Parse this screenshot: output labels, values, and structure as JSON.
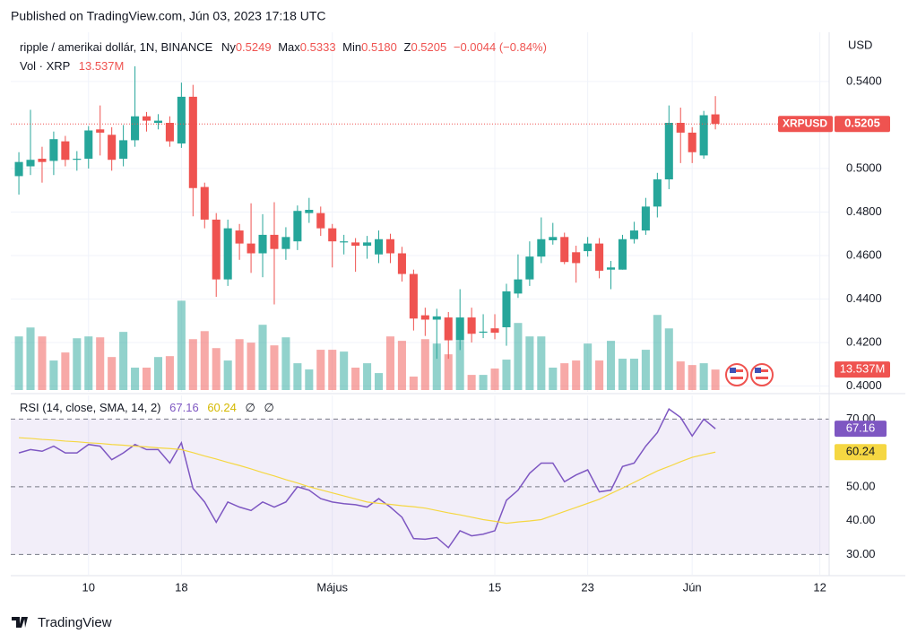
{
  "published": "Published on TradingView.com, Jún 03, 2023 17:18 UTC",
  "footer": "TradingView",
  "chart_data": [
    {
      "type": "candlestick",
      "title": "ripple / amerikai dollár, 1N, BINANCE",
      "legend_keys": [
        "Ny",
        "Max",
        "Min",
        "Z"
      ],
      "legend_labels": [
        "0.5249",
        "0.5333",
        "0.5180",
        "0.5205"
      ],
      "change": "−0.0044 (−0.84%)",
      "currency": "USD",
      "symbol": "XRPUSD",
      "up_color": "#26a69a",
      "down_color": "#ef5350",
      "x": [
        0,
        1,
        2,
        3,
        4,
        5,
        6,
        7,
        8,
        9,
        10,
        11,
        12,
        13,
        14,
        15,
        16,
        17,
        18,
        19,
        20,
        21,
        22,
        23,
        24,
        25,
        26,
        27,
        28,
        29,
        30,
        31,
        32,
        33,
        34,
        35,
        36,
        37,
        38,
        39,
        40,
        41,
        42,
        43,
        44,
        45,
        46,
        47,
        48,
        49,
        50,
        51,
        52,
        53,
        54,
        55,
        56,
        57,
        58,
        59,
        60
      ],
      "open": [
        0.4965,
        0.501,
        0.5045,
        0.5035,
        0.5125,
        0.504,
        0.5045,
        0.518,
        0.5155,
        0.5045,
        0.513,
        0.524,
        0.521,
        0.521,
        0.5115,
        0.533,
        0.4915,
        0.4765,
        0.449,
        0.4715,
        0.4655,
        0.461,
        0.4695,
        0.463,
        0.4665,
        0.4795,
        0.4795,
        0.4725,
        0.466,
        0.466,
        0.4645,
        0.4605,
        0.4675,
        0.461,
        0.4515,
        0.4325,
        0.4305,
        0.4315,
        0.421,
        0.4315,
        0.4245,
        0.4265,
        0.427,
        0.4425,
        0.449,
        0.4595,
        0.467,
        0.4685,
        0.4615,
        0.462,
        0.4655,
        0.4535,
        0.4535,
        0.4675,
        0.4715,
        0.4825,
        0.495,
        0.521,
        0.5165,
        0.506,
        0.5249
      ],
      "high": [
        0.5075,
        0.527,
        0.51,
        0.517,
        0.515,
        0.508,
        0.5195,
        0.529,
        0.519,
        0.52,
        0.547,
        0.526,
        0.525,
        0.524,
        0.5395,
        0.5385,
        0.4935,
        0.4795,
        0.4765,
        0.4745,
        0.484,
        0.479,
        0.4845,
        0.473,
        0.483,
        0.4865,
        0.4825,
        0.4745,
        0.4695,
        0.468,
        0.469,
        0.4715,
        0.47,
        0.464,
        0.4535,
        0.436,
        0.4355,
        0.434,
        0.4445,
        0.436,
        0.433,
        0.433,
        0.447,
        0.4605,
        0.4665,
        0.4775,
        0.475,
        0.4705,
        0.4645,
        0.4685,
        0.468,
        0.4575,
        0.4695,
        0.4755,
        0.4865,
        0.498,
        0.529,
        0.528,
        0.519,
        0.5265,
        0.5333
      ],
      "low": [
        0.488,
        0.497,
        0.4935,
        0.497,
        0.501,
        0.499,
        0.5,
        0.506,
        0.499,
        0.501,
        0.51,
        0.517,
        0.518,
        0.51,
        0.5095,
        0.478,
        0.4725,
        0.441,
        0.446,
        0.458,
        0.452,
        0.45,
        0.4375,
        0.458,
        0.4625,
        0.475,
        0.469,
        0.4545,
        0.4605,
        0.4525,
        0.4585,
        0.4565,
        0.4565,
        0.448,
        0.4255,
        0.423,
        0.4125,
        0.4125,
        0.4165,
        0.42,
        0.422,
        0.4215,
        0.4185,
        0.4405,
        0.446,
        0.4565,
        0.465,
        0.456,
        0.4475,
        0.4595,
        0.4495,
        0.4445,
        0.4535,
        0.4655,
        0.4695,
        0.4775,
        0.4905,
        0.5025,
        0.5025,
        0.5045,
        0.518
      ],
      "close": [
        0.503,
        0.504,
        0.503,
        0.5135,
        0.504,
        0.5045,
        0.5175,
        0.5165,
        0.504,
        0.513,
        0.524,
        0.522,
        0.522,
        0.5125,
        0.533,
        0.491,
        0.4765,
        0.449,
        0.4725,
        0.4655,
        0.461,
        0.4695,
        0.463,
        0.4685,
        0.4805,
        0.481,
        0.4725,
        0.4665,
        0.4665,
        0.4645,
        0.466,
        0.4675,
        0.461,
        0.4515,
        0.431,
        0.4305,
        0.432,
        0.421,
        0.4315,
        0.424,
        0.425,
        0.4245,
        0.4435,
        0.449,
        0.4595,
        0.4675,
        0.4685,
        0.457,
        0.4565,
        0.4655,
        0.453,
        0.4545,
        0.4675,
        0.4715,
        0.4825,
        0.495,
        0.521,
        0.5165,
        0.5075,
        0.5245,
        0.5205
      ],
      "volume": {
        "name": "Vol · XRP",
        "values": [
          35400000,
          41300000,
          35400000,
          19500000,
          24800000,
          34200000,
          35400000,
          34800000,
          21800000,
          38400000,
          14800000,
          14800000,
          21800000,
          22400000,
          59000000,
          33600000,
          38900000,
          27700000,
          19500000,
          33600000,
          31300000,
          43100000,
          29500000,
          34800000,
          17700000,
          13600000,
          26600000,
          26600000,
          25400000,
          14800000,
          17700000,
          11200000,
          35400000,
          32500000,
          8900000,
          33600000,
          30700000,
          23600000,
          32500000,
          10000000,
          10000000,
          14200000,
          20100000,
          44300000,
          35400000,
          35400000,
          14800000,
          17700000,
          19500000,
          30700000,
          19500000,
          32500000,
          20700000,
          20700000,
          26600000,
          49600000,
          40700000,
          18900000,
          16500000,
          17700000,
          13537000
        ],
        "last_label": "13.537M",
        "vlim": [
          0,
          90000000
        ]
      },
      "xlim": [
        -0.7,
        69.8
      ],
      "xticks": [
        {
          "value": 6,
          "label": "10"
        },
        {
          "value": 14,
          "label": "18"
        },
        {
          "value": 27,
          "label": "Május"
        },
        {
          "value": 41,
          "label": "15"
        },
        {
          "value": 49,
          "label": "23"
        },
        {
          "value": 58,
          "label": "Jún"
        },
        {
          "value": 69,
          "label": "12"
        }
      ],
      "ylim": [
        0.3973,
        0.561
      ],
      "yticks": [
        {
          "value": 0.4,
          "label": "0.4000"
        },
        {
          "value": 0.42,
          "label": "0.4200"
        },
        {
          "value": 0.44,
          "label": "0.4400"
        },
        {
          "value": 0.46,
          "label": "0.4600"
        },
        {
          "value": 0.48,
          "label": "0.4800"
        },
        {
          "value": 0.5,
          "label": "0.5000"
        },
        {
          "value": 0.54,
          "label": "0.5400"
        }
      ],
      "grid": true
    },
    {
      "type": "line",
      "title": "RSI (14, close, SMA, 14, 2)",
      "na_labels": [
        "∅",
        "∅"
      ],
      "series": [
        {
          "color": "#7e57c2",
          "values": [
            60,
            61,
            60.5,
            62,
            60,
            60,
            62.5,
            62,
            58,
            60,
            62.5,
            61,
            61,
            57,
            63,
            49.5,
            45.5,
            39.5,
            45.5,
            44,
            43,
            45.5,
            44,
            45.5,
            50,
            49,
            46.5,
            45.5,
            45,
            44.7,
            44,
            46.5,
            44,
            41,
            34.7,
            34.5,
            35,
            32,
            37,
            35.5,
            36,
            37,
            46,
            49,
            54,
            57,
            57,
            51.5,
            53.5,
            55,
            48.5,
            49,
            56,
            57,
            62,
            66,
            73,
            70.5,
            65,
            70,
            67.16
          ]
        },
        {
          "color": "#f5d742",
          "values": [
            64.5,
            64.3,
            64,
            63.8,
            63.5,
            63.3,
            63,
            62.8,
            62.5,
            62.3,
            62,
            61.8,
            61.5,
            61.3,
            61,
            60.1,
            59.1,
            58.2,
            57.2,
            56.3,
            55.3,
            54.2,
            53.2,
            52.1,
            51.1,
            50,
            49.1,
            48.2,
            47.3,
            46.4,
            45.5,
            45.1,
            44.8,
            44.4,
            44.1,
            43.7,
            43,
            42.3,
            41.7,
            41,
            40.3,
            39.8,
            39.2,
            39.6,
            39.9,
            40.3,
            41.5,
            42.7,
            43.9,
            45.1,
            46.3,
            48,
            49.6,
            51.3,
            53,
            54.7,
            56,
            57.4,
            58.7,
            59.5,
            60.24
          ]
        }
      ],
      "ylim": [
        24,
        77
      ],
      "yticks": [
        {
          "value": 30,
          "label": "30.00"
        },
        {
          "value": 40,
          "label": "40.00"
        },
        {
          "value": 50,
          "label": "50.00"
        },
        {
          "value": 70,
          "label": "70.00"
        }
      ],
      "levels": [
        30,
        50,
        70
      ],
      "band": [
        30,
        70
      ]
    }
  ]
}
